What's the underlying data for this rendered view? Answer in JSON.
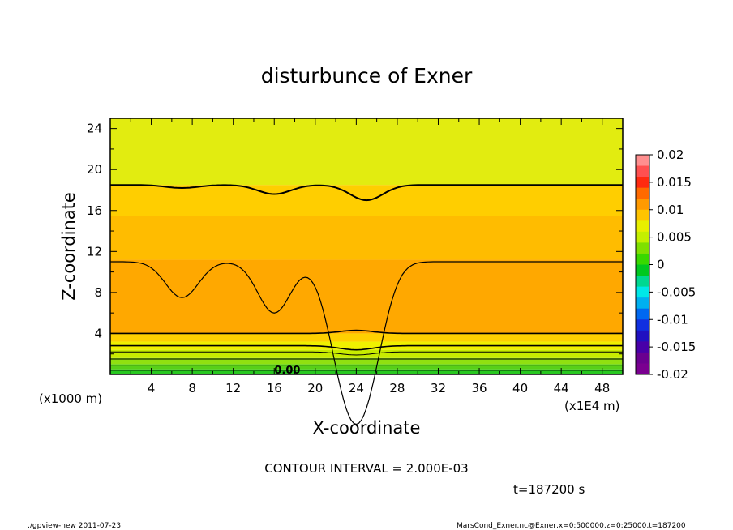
{
  "chart_data": {
    "type": "heatmap",
    "title": "disturbunce of Exner",
    "xlabel": "X-coordinate",
    "ylabel": "Z-coordinate",
    "x_unit_left": "(x1000 m)",
    "x_unit_right": "(x1E4 m)",
    "xlim": [
      0,
      50
    ],
    "ylim": [
      0,
      25
    ],
    "xticks": [
      "4",
      "8",
      "12",
      "16",
      "20",
      "24",
      "28",
      "32",
      "36",
      "40",
      "44",
      "48"
    ],
    "xtick_values": [
      4,
      8,
      12,
      16,
      20,
      24,
      28,
      32,
      36,
      40,
      44,
      48
    ],
    "yticks": [
      "4",
      "8",
      "12",
      "16",
      "20",
      "24"
    ],
    "ytick_values": [
      4,
      8,
      12,
      16,
      20,
      24
    ],
    "contour_interval_text": "CONTOUR INTERVAL = 2.000E-03",
    "contour_label": "0.00",
    "contour_label_pos": [
      16.8,
      0.4
    ],
    "time_text": "t=187200 s",
    "colorbar": {
      "levels": [
        "0.02",
        "0.015",
        "0.01",
        "0.005",
        "0",
        "-0.005",
        "-0.01",
        "-0.015",
        "-0.02"
      ],
      "level_values": [
        0.02,
        0.015,
        0.01,
        0.005,
        0,
        -0.005,
        -0.01,
        -0.015,
        -0.02
      ],
      "colors": [
        "#ff8f8f",
        "#ff5050",
        "#ff2a10",
        "#ff6a00",
        "#ff9a00",
        "#ffc400",
        "#e8f000",
        "#c4f000",
        "#7fe000",
        "#38d800",
        "#00c820",
        "#00d890",
        "#00e8e8",
        "#00b0f0",
        "#0068f0",
        "#1030e0",
        "#2010c0",
        "#4800a8",
        "#6a0090",
        "#7a0090"
      ]
    },
    "bands": [
      {
        "z0": 0,
        "z1": 0.5,
        "color": "#28c820"
      },
      {
        "z0": 0.5,
        "z1": 1.0,
        "color": "#58d018"
      },
      {
        "z0": 1.0,
        "z1": 1.6,
        "color": "#90e010"
      },
      {
        "z0": 1.6,
        "z1": 2.4,
        "color": "#c8ec00"
      },
      {
        "z0": 2.4,
        "z1": 3.2,
        "color": "#f0f000"
      },
      {
        "z0": 3.2,
        "z1": 4.0,
        "color": "#ffd000"
      },
      {
        "z0": 4.0,
        "z1": 11.2,
        "color": "#ffa800"
      },
      {
        "z0": 11.2,
        "z1": 15.5,
        "color": "#ffbc00"
      },
      {
        "z0": 15.5,
        "z1": 18.5,
        "color": "#ffce00"
      },
      {
        "z0": 18.5,
        "z1": 25,
        "color": "#e2ec10"
      }
    ],
    "contours": [
      {
        "z": 18.5,
        "color": "#000",
        "width": 2,
        "dips": [
          [
            7,
            0.3
          ],
          [
            16,
            0.9
          ],
          [
            25,
            1.5
          ]
        ]
      },
      {
        "z": 11.0,
        "color": "#000",
        "width": 1.2,
        "dips": [
          [
            7,
            3.5
          ],
          [
            16,
            5
          ],
          [
            22.5,
            6.5
          ],
          [
            24,
            7.5
          ],
          [
            25.5,
            6.5
          ]
        ]
      },
      {
        "z": 4.0,
        "color": "#000",
        "width": 1.6,
        "dips": [
          [
            24,
            -0.3
          ]
        ]
      },
      {
        "z": 2.8,
        "color": "#000",
        "width": 1.6,
        "dips": [
          [
            24,
            0.4
          ]
        ]
      },
      {
        "z": 2.2,
        "color": "#000",
        "width": 1.0,
        "dips": [
          [
            24,
            0.3
          ]
        ]
      },
      {
        "z": 1.5,
        "color": "#000",
        "width": 1.0,
        "dips": []
      },
      {
        "z": 0.9,
        "color": "#000",
        "width": 1.0,
        "dips": []
      },
      {
        "z": 0.4,
        "color": "#000",
        "width": 1.0,
        "dips": []
      }
    ]
  },
  "footer": {
    "left": "./gpview-new  2011-07-23",
    "right": "MarsCond_Exner.nc@Exner,x=0:500000,z=0:25000,t=187200"
  }
}
